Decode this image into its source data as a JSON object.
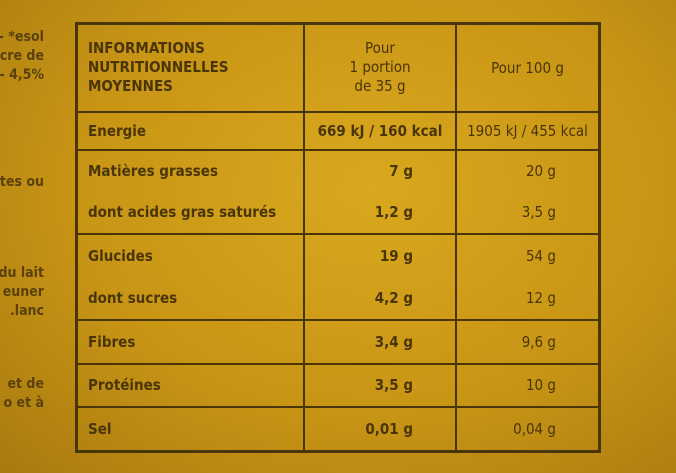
{
  "side_text": [
    "esol* -",
    "ucre de",
    "4,5% -",
    "tes ou",
    "du lait",
    "euner",
    "lanc.",
    "et de",
    "o et à"
  ],
  "table": {
    "header": {
      "label": [
        "INFORMATIONS",
        "NUTRITIONNELLES",
        "MOYENNES"
      ],
      "col1": [
        "Pour",
        "1 portion",
        "de 35 g"
      ],
      "col2": "Pour 100 g"
    },
    "rows": [
      {
        "label": "Energie",
        "portion": "669 kJ / 160 kcal",
        "per100": "1905 kJ / 455 kcal"
      },
      {
        "label": "Matières grasses",
        "portion": "7 g",
        "per100": "20 g"
      },
      {
        "label": "dont acides gras saturés",
        "portion": "1,2 g",
        "per100": "3,5 g"
      },
      {
        "label": "Glucides",
        "portion": "19 g",
        "per100": "54 g"
      },
      {
        "label": "dont sucres",
        "portion": "4,2 g",
        "per100": "12 g"
      },
      {
        "label": "Fibres",
        "portion": "3,4 g",
        "per100": "9,6 g"
      },
      {
        "label": "Protéines",
        "portion": "3,5 g",
        "per100": "10 g"
      },
      {
        "label": "Sel",
        "portion": "0,01 g",
        "per100": "0,04 g"
      }
    ]
  }
}
